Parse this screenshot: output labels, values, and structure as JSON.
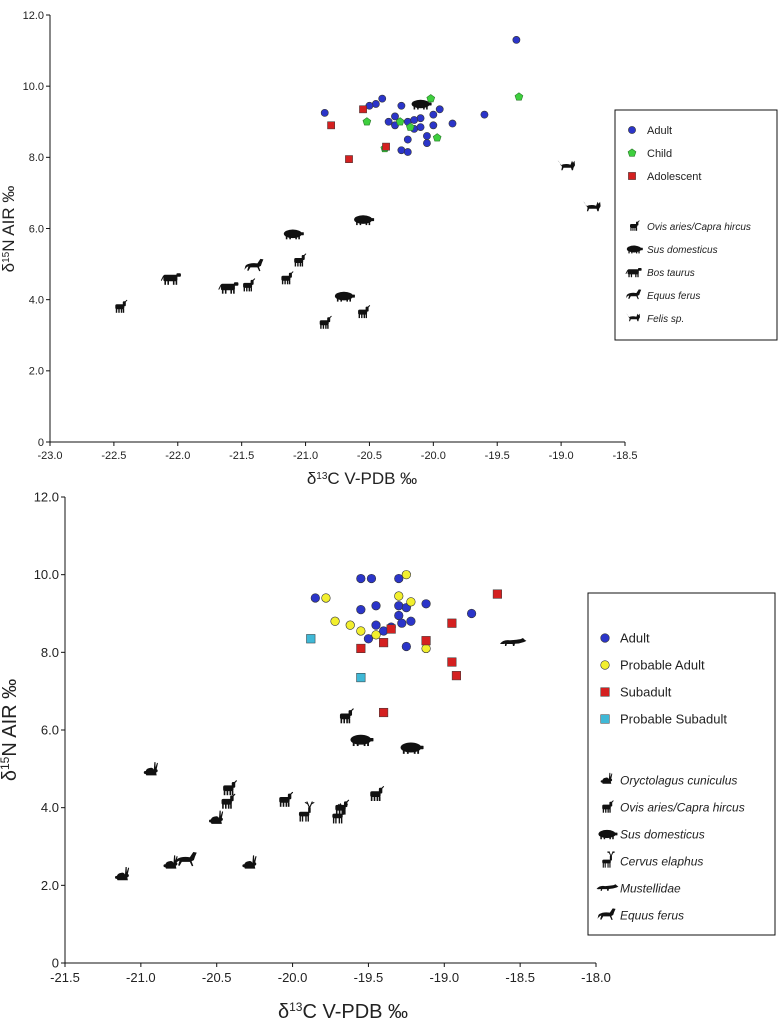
{
  "chart_data": [
    {
      "type": "scatter",
      "xlabel_prefix": "δ",
      "xlabel_sup": "13",
      "xlabel_rest": "C V-PDB ‰",
      "ylabel_prefix": "δ",
      "ylabel_sup": "15",
      "ylabel_rest": "N AIR ‰",
      "xlim": [
        -23.0,
        -18.5
      ],
      "ylim": [
        0,
        12.0
      ],
      "xticks": [
        "-23.0",
        "-22.5",
        "-22.0",
        "-21.5",
        "-21.0",
        "-20.5",
        "-20.0",
        "-19.5",
        "-19.0",
        "-18.5"
      ],
      "xtick_values": [
        -23.0,
        -22.5,
        -22.0,
        -21.5,
        -21.0,
        -20.5,
        -20.0,
        -19.5,
        -19.0,
        -18.5
      ],
      "yticks": [
        "0",
        "2.0",
        "4.0",
        "6.0",
        "8.0",
        "10.0",
        "12.0"
      ],
      "ytick_values": [
        0,
        2,
        4,
        6,
        8,
        10,
        12
      ],
      "series": [
        {
          "name": "Adult",
          "marker": "circle",
          "color": "#2b35c9",
          "points": [
            [
              -20.85,
              9.25
            ],
            [
              -20.4,
              9.65
            ],
            [
              -20.45,
              9.5
            ],
            [
              -20.25,
              9.45
            ],
            [
              -20.3,
              9.15
            ],
            [
              -20.2,
              9.0
            ],
            [
              -20.15,
              8.8
            ],
            [
              -20.1,
              9.1
            ],
            [
              -20.05,
              8.6
            ],
            [
              -20.0,
              9.2
            ],
            [
              -19.95,
              9.35
            ],
            [
              -20.0,
              8.9
            ],
            [
              -20.05,
              8.4
            ],
            [
              -20.2,
              8.5
            ],
            [
              -20.25,
              8.2
            ],
            [
              -20.3,
              8.9
            ],
            [
              -20.35,
              9.0
            ],
            [
              -20.15,
              9.05
            ],
            [
              -20.2,
              8.15
            ],
            [
              -19.85,
              8.95
            ],
            [
              -19.6,
              9.2
            ],
            [
              -20.5,
              9.45
            ],
            [
              -20.1,
              8.85
            ],
            [
              -19.35,
              11.3
            ]
          ]
        },
        {
          "name": "Child",
          "marker": "pentagon",
          "color": "#3ecf3e",
          "points": [
            [
              -20.02,
              9.65
            ],
            [
              -19.33,
              9.7
            ],
            [
              -20.52,
              9.0
            ],
            [
              -20.26,
              9.0
            ],
            [
              -20.18,
              8.85
            ],
            [
              -20.38,
              8.25
            ],
            [
              -19.97,
              8.55
            ]
          ]
        },
        {
          "name": "Adolescent",
          "marker": "square",
          "color": "#d42020",
          "points": [
            [
              -20.55,
              9.35
            ],
            [
              -20.8,
              8.9
            ],
            [
              -20.37,
              8.3
            ],
            [
              -20.66,
              7.95
            ]
          ]
        }
      ],
      "fauna": [
        {
          "taxon": "Ovis aries/Capra hircus",
          "icon": "sheep-goat-icon",
          "points": [
            [
              -22.45,
              3.8
            ],
            [
              -21.05,
              5.1
            ],
            [
              -20.85,
              3.35
            ],
            [
              -20.55,
              3.65
            ],
            [
              -21.45,
              4.4
            ],
            [
              -21.15,
              4.6
            ]
          ]
        },
        {
          "taxon": "Sus domesticus",
          "icon": "pig-icon",
          "points": [
            [
              -21.1,
              5.85
            ],
            [
              -20.55,
              6.25
            ],
            [
              -20.7,
              4.1
            ],
            [
              -20.1,
              9.5
            ]
          ]
        },
        {
          "taxon": "Bos taurus",
          "icon": "cattle-icon",
          "points": [
            [
              -22.05,
              4.6
            ],
            [
              -21.6,
              4.35
            ]
          ]
        },
        {
          "taxon": "Equus ferus",
          "icon": "horse-icon",
          "points": [
            [
              -21.4,
              4.95
            ]
          ]
        },
        {
          "taxon": "Felis sp.",
          "icon": "cat-icon",
          "points": [
            [
              -18.95,
              7.75
            ],
            [
              -18.75,
              6.6
            ]
          ]
        }
      ],
      "legend": {
        "placement": "right",
        "human_entries": [
          {
            "label": "Adult",
            "marker": "circle",
            "color": "#2b35c9"
          },
          {
            "label": "Child",
            "marker": "pentagon",
            "color": "#3ecf3e"
          },
          {
            "label": "Adolescent",
            "marker": "square",
            "color": "#d42020"
          }
        ],
        "fauna_entries": [
          {
            "label": "Ovis aries/Capra hircus",
            "icon": "sheep-goat-icon"
          },
          {
            "label": "Sus domesticus",
            "icon": "pig-icon"
          },
          {
            "label": "Bos taurus",
            "icon": "cattle-icon"
          },
          {
            "label": "Equus ferus",
            "icon": "horse-icon"
          },
          {
            "label": "Felis sp.",
            "icon": "cat-icon"
          }
        ]
      },
      "grid": false
    },
    {
      "type": "scatter",
      "xlabel_prefix": "δ",
      "xlabel_sup": "13",
      "xlabel_rest": "C V-PDB ‰",
      "ylabel_prefix": "δ",
      "ylabel_sup": "15",
      "ylabel_rest": "N AIR ‰",
      "xlim": [
        -21.5,
        -18.0
      ],
      "ylim": [
        0,
        12.0
      ],
      "xticks": [
        "-21.5",
        "-21.0",
        "-20.5",
        "-20.0",
        "-19.5",
        "-19.0",
        "-18.5",
        "-18.0"
      ],
      "xtick_values": [
        -21.5,
        -21.0,
        -20.5,
        -20.0,
        -19.5,
        -19.0,
        -18.5,
        -18.0
      ],
      "yticks": [
        "0",
        "2.0",
        "4.0",
        "6.0",
        "8.0",
        "10.0",
        "12.0"
      ],
      "ytick_values": [
        0,
        2,
        4,
        6,
        8,
        10,
        12
      ],
      "series": [
        {
          "name": "Adult",
          "marker": "circle",
          "color": "#2b35c9",
          "points": [
            [
              -19.85,
              9.4
            ],
            [
              -19.55,
              9.9
            ],
            [
              -19.48,
              9.9
            ],
            [
              -19.55,
              9.1
            ],
            [
              -19.45,
              9.2
            ],
            [
              -19.3,
              9.2
            ],
            [
              -19.25,
              9.15
            ],
            [
              -19.3,
              8.95
            ],
            [
              -19.35,
              8.65
            ],
            [
              -19.4,
              8.55
            ],
            [
              -19.45,
              8.7
            ],
            [
              -19.5,
              8.35
            ],
            [
              -19.28,
              8.75
            ],
            [
              -19.25,
              8.15
            ],
            [
              -19.12,
              9.25
            ],
            [
              -18.82,
              9.0
            ],
            [
              -19.3,
              9.9
            ],
            [
              -19.22,
              8.8
            ]
          ]
        },
        {
          "name": "Probable Adult",
          "marker": "circle",
          "color": "#f2ef2e",
          "points": [
            [
              -19.78,
              9.4
            ],
            [
              -19.72,
              8.8
            ],
            [
              -19.62,
              8.7
            ],
            [
              -19.55,
              8.55
            ],
            [
              -19.45,
              8.45
            ],
            [
              -19.3,
              9.45
            ],
            [
              -19.25,
              10.0
            ],
            [
              -19.22,
              9.3
            ],
            [
              -19.12,
              8.1
            ]
          ]
        },
        {
          "name": "Subadult",
          "marker": "square",
          "color": "#d42020",
          "points": [
            [
              -19.55,
              8.1
            ],
            [
              -19.4,
              8.25
            ],
            [
              -19.35,
              8.6
            ],
            [
              -19.12,
              8.3
            ],
            [
              -18.95,
              8.75
            ],
            [
              -18.95,
              7.75
            ],
            [
              -18.92,
              7.4
            ],
            [
              -18.65,
              9.5
            ],
            [
              -19.4,
              6.45
            ]
          ]
        },
        {
          "name": "Probable Subadult",
          "marker": "square",
          "color": "#3fb8d6",
          "points": [
            [
              -19.88,
              8.35
            ],
            [
              -19.55,
              7.35
            ]
          ]
        }
      ],
      "fauna": [
        {
          "taxon": "Oryctolagus cuniculus",
          "icon": "rabbit-icon",
          "points": [
            [
              -21.12,
              2.25
            ],
            [
              -20.93,
              4.95
            ],
            [
              -20.8,
              2.55
            ],
            [
              -20.5,
              3.7
            ],
            [
              -20.28,
              2.55
            ]
          ]
        },
        {
          "taxon": "Ovis aries/Capra hircus",
          "icon": "sheep-goat-icon",
          "points": [
            [
              -20.42,
              4.5
            ],
            [
              -20.43,
              4.15
            ],
            [
              -20.05,
              4.2
            ],
            [
              -19.68,
              4.0
            ],
            [
              -19.45,
              4.35
            ],
            [
              -19.65,
              6.35
            ]
          ]
        },
        {
          "taxon": "Sus domesticus",
          "icon": "pig-icon",
          "points": [
            [
              -19.55,
              5.75
            ],
            [
              -19.22,
              5.55
            ]
          ]
        },
        {
          "taxon": "Cervus elaphus",
          "icon": "deer-icon",
          "points": [
            [
              -19.92,
              3.85
            ],
            [
              -19.7,
              3.8
            ]
          ]
        },
        {
          "taxon": "Mustellidae",
          "icon": "weasel-icon",
          "points": [
            [
              -18.55,
              8.25
            ]
          ]
        },
        {
          "taxon": "Equus ferus",
          "icon": "horse-icon",
          "points": [
            [
              -20.7,
              2.65
            ]
          ]
        }
      ],
      "legend": {
        "placement": "right",
        "human_entries": [
          {
            "label": "Adult",
            "marker": "circle",
            "color": "#2b35c9"
          },
          {
            "label": "Probable Adult",
            "marker": "circle",
            "color": "#f2ef2e"
          },
          {
            "label": "Subadult",
            "marker": "square",
            "color": "#d42020"
          },
          {
            "label": "Probable Subadult",
            "marker": "square",
            "color": "#3fb8d6"
          }
        ],
        "fauna_entries": [
          {
            "label": "Oryctolagus cuniculus",
            "icon": "rabbit-icon"
          },
          {
            "label": "Ovis aries/Capra hircus",
            "icon": "sheep-goat-icon"
          },
          {
            "label": "Sus domesticus",
            "icon": "pig-icon"
          },
          {
            "label": "Cervus elaphus",
            "icon": "deer-icon"
          },
          {
            "label": "Mustellidae",
            "icon": "weasel-icon"
          },
          {
            "label": "Equus ferus",
            "icon": "horse-icon"
          }
        ]
      },
      "grid": false
    }
  ]
}
